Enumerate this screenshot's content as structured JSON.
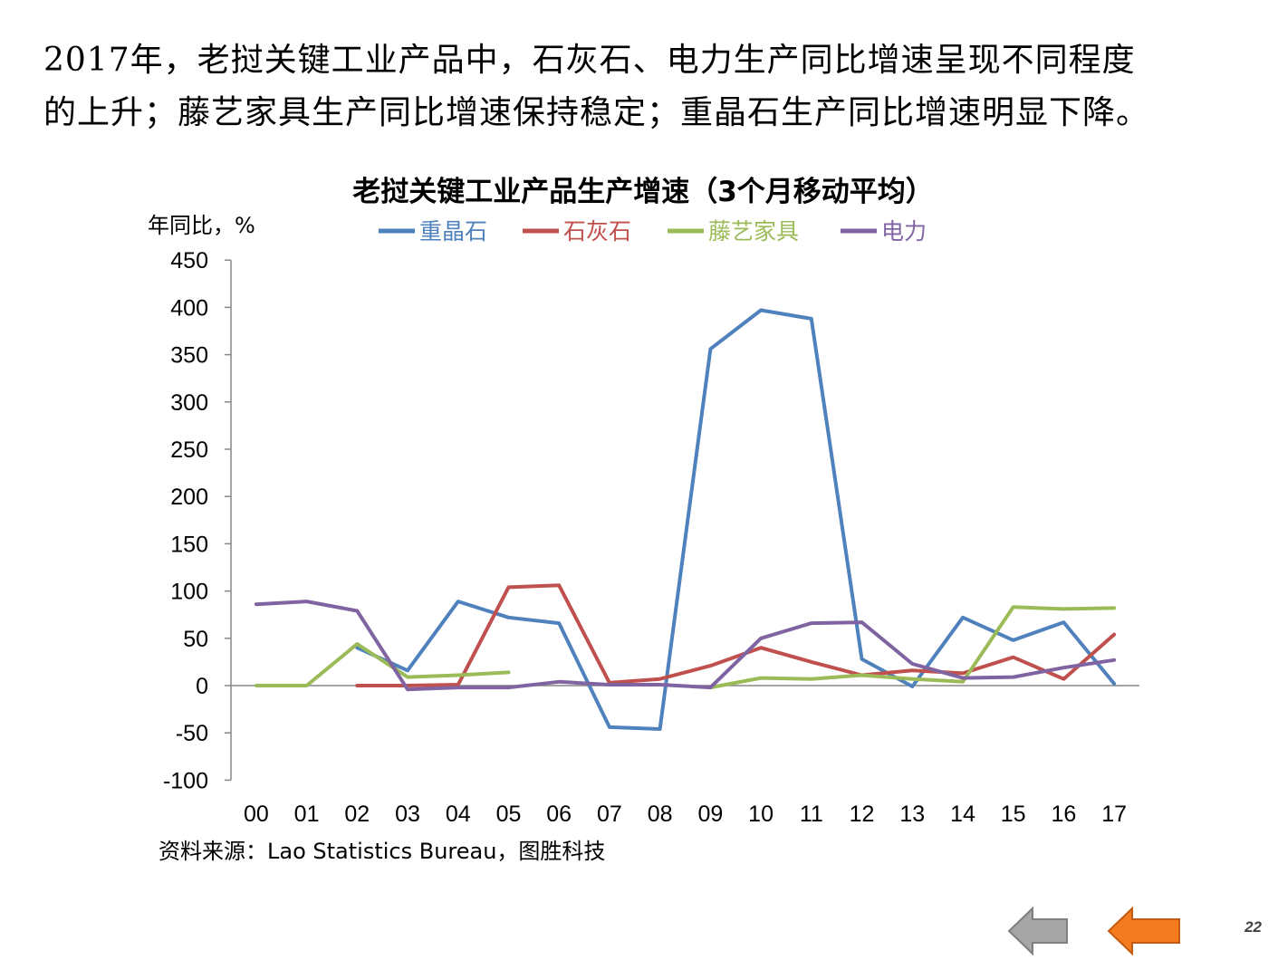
{
  "headline": {
    "line1": "2017年，老挝关键工业产品中，石灰石、电力生产同比增速呈现不同程度",
    "line2": "的上升；藤艺家具生产同比增速保持稳定；重晶石生产同比增速明显下降。"
  },
  "source": "资料来源：Lao Statistics Bureau，图胜科技",
  "page_number": "22",
  "nav": {
    "prev_color": "#A6A6A6",
    "next_color": "#F47B20"
  },
  "chart_data": {
    "type": "line",
    "title": "老挝关键工业产品生产增速（3个月移动平均）",
    "ylabel": "年同比，%",
    "xlabel": "",
    "categories": [
      "00",
      "01",
      "02",
      "03",
      "04",
      "05",
      "06",
      "07",
      "08",
      "09",
      "10",
      "11",
      "12",
      "13",
      "14",
      "15",
      "16",
      "17"
    ],
    "ylim": [
      -100,
      450
    ],
    "yticks": [
      -100,
      -50,
      0,
      50,
      100,
      150,
      200,
      250,
      300,
      350,
      400,
      450
    ],
    "grid": false,
    "legend_position": "top",
    "series": [
      {
        "name": "重晶石",
        "color": "#4F81BD",
        "values": [
          null,
          null,
          40,
          16,
          89,
          72,
          66,
          -44,
          -46,
          356,
          397,
          388,
          28,
          -1,
          72,
          48,
          67,
          2
        ]
      },
      {
        "name": "石灰石",
        "color": "#C0504D",
        "values": [
          null,
          null,
          0,
          0,
          1,
          104,
          106,
          3,
          7,
          21,
          40,
          25,
          11,
          16,
          13,
          30,
          7,
          54
        ]
      },
      {
        "name": "藤艺家具",
        "color": "#9BBB59",
        "values": [
          0,
          0,
          44,
          9,
          11,
          14,
          null,
          null,
          null,
          -2,
          8,
          7,
          11,
          7,
          4,
          83,
          81,
          82
        ]
      },
      {
        "name": "电力",
        "color": "#8064A2",
        "values": [
          86,
          89,
          79,
          -4,
          -2,
          -2,
          4,
          1,
          1,
          -2,
          50,
          66,
          67,
          23,
          8,
          9,
          19,
          27
        ]
      }
    ]
  }
}
